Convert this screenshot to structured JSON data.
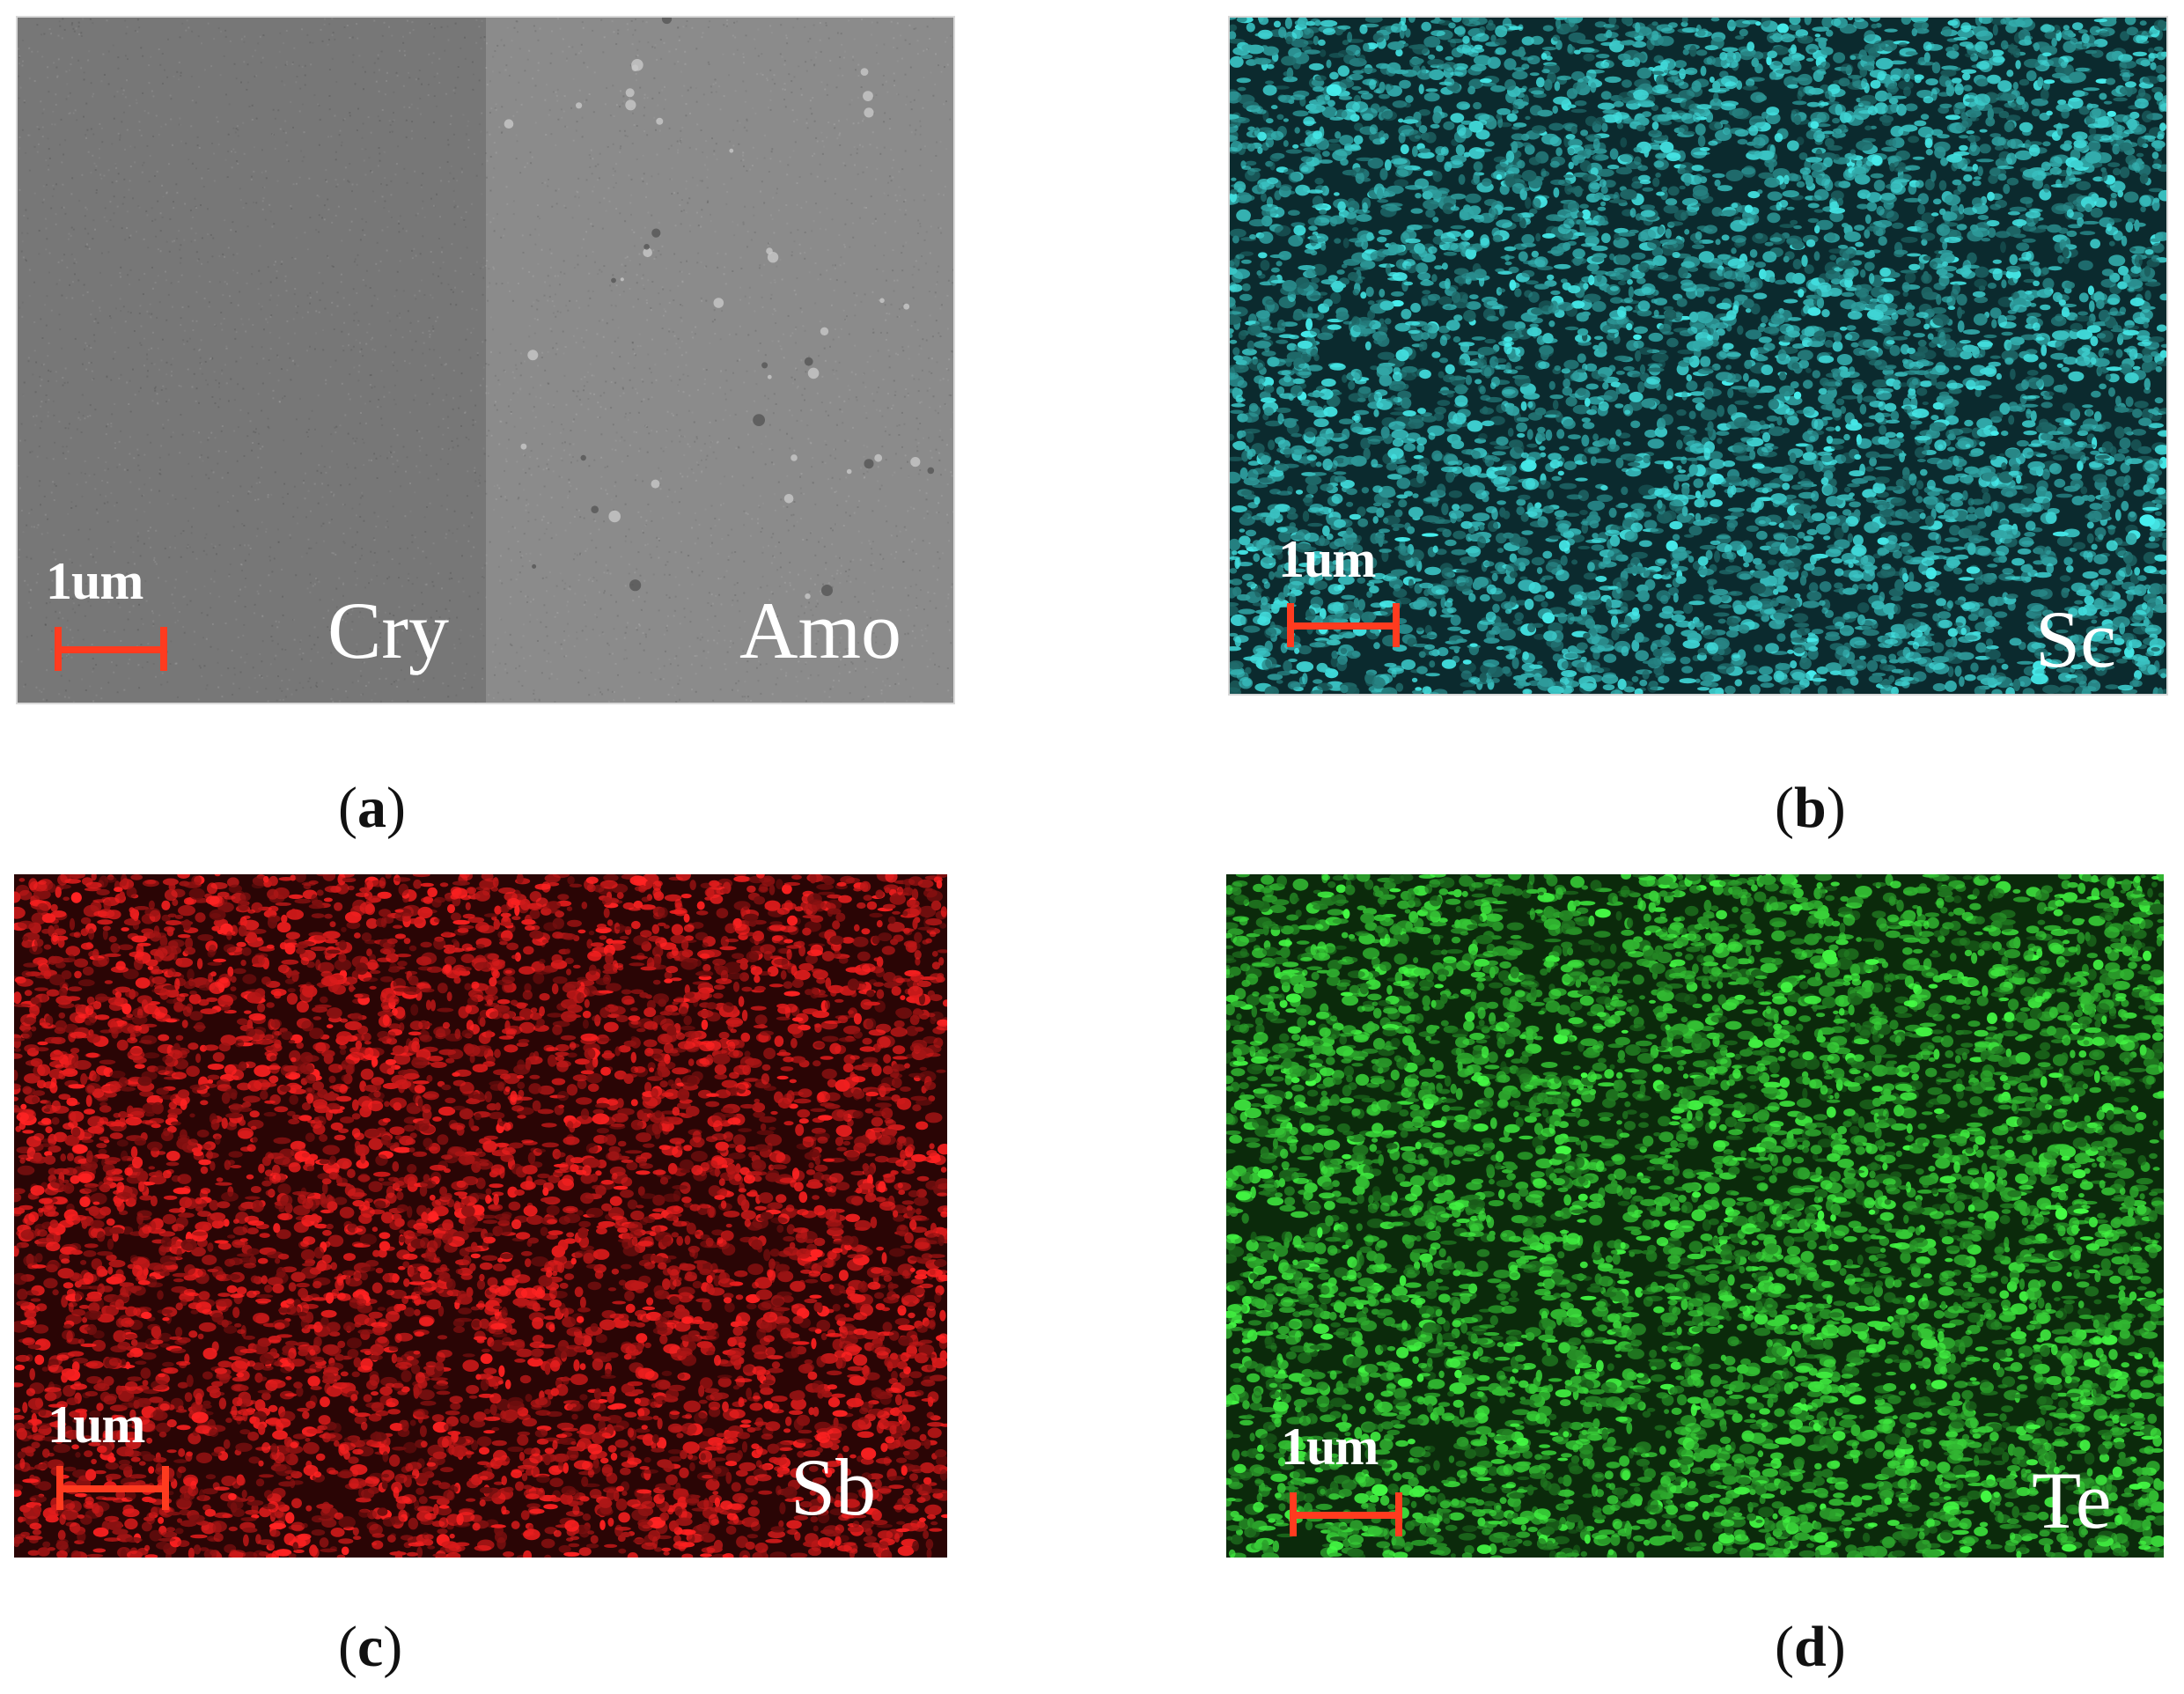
{
  "panels": [
    {
      "id": "a",
      "caption": "a",
      "scale_label": "1um",
      "regions": [
        "Cry",
        "Amo"
      ],
      "colors": {
        "cry": "#777777",
        "amo": "#8b8b8b"
      }
    },
    {
      "id": "b",
      "caption": "b",
      "scale_label": "1um",
      "element": "Sc",
      "color": "#3cc8c8"
    },
    {
      "id": "c",
      "caption": "c",
      "scale_label": "1um",
      "element": "Sb",
      "color": "#e81e1e"
    },
    {
      "id": "d",
      "caption": "d",
      "scale_label": "1um",
      "element": "Te",
      "color": "#3ad43a"
    }
  ],
  "scale_bar_color": "#ff3b1f"
}
